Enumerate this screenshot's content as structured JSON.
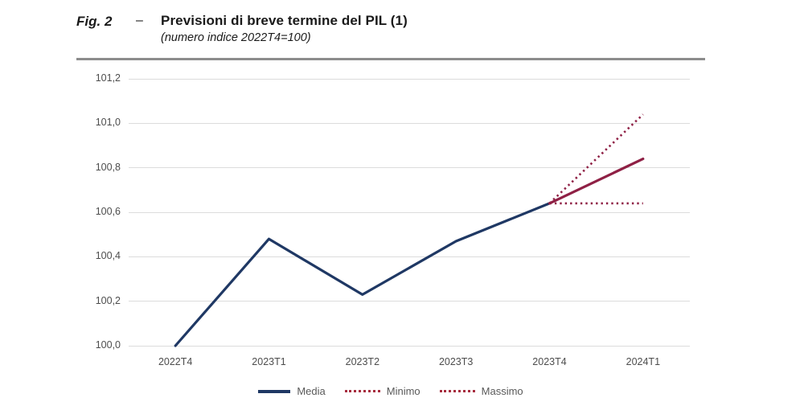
{
  "figure": {
    "label": "Fig. 2",
    "dash": "–",
    "title": "Previsioni di breve termine del PIL (1)",
    "subtitle": "(numero indice 2022T4=100)"
  },
  "colors": {
    "media_line": "#1F3864",
    "forecast_line": "#8F2045",
    "bounds_dotted": "#8F2045",
    "legend_dotted": "#A72C3E",
    "gridline": "#DCDCDC",
    "axis_text": "#4D4D4D",
    "title_text": "#1A1A1A",
    "separator": "#8C8C8C"
  },
  "chart_data": {
    "type": "line",
    "title": "Previsioni di breve termine del PIL (1)",
    "subtitle": "(numero indice 2022T4=100)",
    "categories": [
      "2022T4",
      "2023T1",
      "2023T2",
      "2023T3",
      "2023T4",
      "2024T1"
    ],
    "xlabel": "",
    "ylabel": "",
    "ylim": [
      100.0,
      101.2
    ],
    "grid": true,
    "legend_position": "bottom",
    "yticks": [
      {
        "value": 101.2,
        "label": "101,2"
      },
      {
        "value": 101.0,
        "label": "101,0"
      },
      {
        "value": 100.8,
        "label": "100,8"
      },
      {
        "value": 100.6,
        "label": "100,6"
      },
      {
        "value": 100.4,
        "label": "100,4"
      },
      {
        "value": 100.2,
        "label": "100,2"
      },
      {
        "value": 100.0,
        "label": "100,0"
      }
    ],
    "series": [
      {
        "name": "Media",
        "values": [
          100.0,
          100.48,
          100.23,
          100.47,
          100.64,
          100.84
        ],
        "segments": [
          {
            "start": 0,
            "end": 4,
            "color": "#1F3864",
            "dash": "solid",
            "width": 3.2
          },
          {
            "start": 4,
            "end": 5,
            "color": "#8F2045",
            "dash": "solid",
            "width": 3.2
          }
        ],
        "legend_swatch": {
          "style": "solid",
          "color": "#1F3864"
        }
      },
      {
        "name": "Minimo",
        "values": [
          null,
          null,
          null,
          null,
          100.64,
          100.64
        ],
        "segments": [
          {
            "start": 4,
            "end": 5,
            "color": "#8F2045",
            "dash": "dotted",
            "width": 2.6
          }
        ],
        "legend_swatch": {
          "style": "dotted",
          "color": "#A72C3E"
        }
      },
      {
        "name": "Massimo",
        "values": [
          null,
          null,
          null,
          null,
          100.64,
          101.04
        ],
        "segments": [
          {
            "start": 4,
            "end": 5,
            "color": "#8F2045",
            "dash": "dotted",
            "width": 2.6
          }
        ],
        "legend_swatch": {
          "style": "dotted",
          "color": "#A72C3E"
        }
      }
    ]
  }
}
